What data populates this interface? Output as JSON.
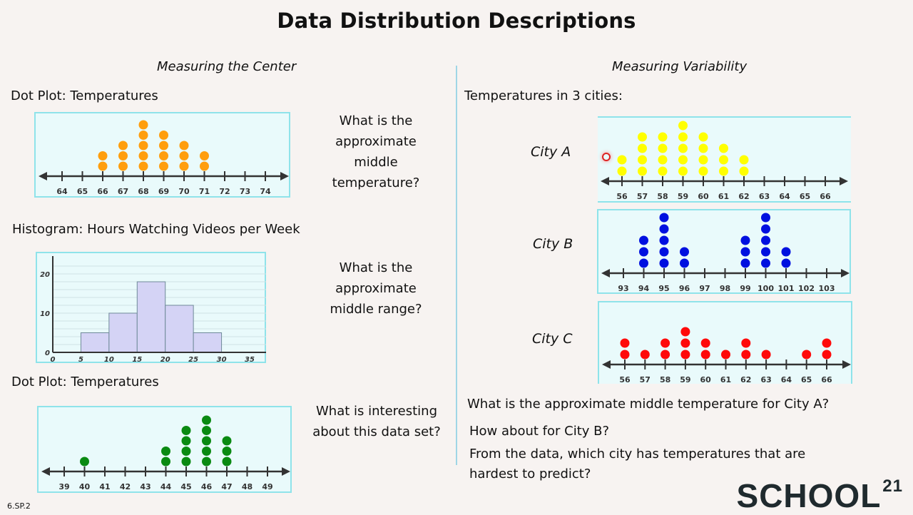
{
  "title": "Data Distribution Descriptions",
  "left": {
    "section": "Measuring the Center",
    "dot_plot_1_title": "Dot Plot:  Temperatures",
    "q1": [
      "What is the",
      "approximate",
      "middle",
      "temperature?"
    ],
    "histogram_title": "Histogram:  Hours Watching Videos per Week",
    "q2": [
      "What is the",
      "approximate",
      "middle range?"
    ],
    "dot_plot_2_title": "Dot Plot:  Temperatures",
    "q3": [
      "What is interesting",
      "about this data set?"
    ]
  },
  "right": {
    "section": "Measuring Variability",
    "subtitle": "Temperatures in 3 cities:",
    "city_a": "City A",
    "city_b": "City B",
    "city_c": "City C",
    "q1": "What is the approximate middle temperature for City A?",
    "q2": "How about for City B?",
    "q3": [
      "From the data, which city has temperatures that are",
      "hardest to predict?"
    ]
  },
  "footer": {
    "code": "6.SP.2",
    "logo": "SCHOOL",
    "logo_sup": "21"
  },
  "chart_data": [
    {
      "id": "dot1",
      "type": "scatter",
      "subtype": "dot-plot",
      "title": "Dot Plot: Temperatures",
      "color": "#ff9e0d",
      "ticks": [
        64,
        65,
        66,
        67,
        68,
        69,
        70,
        71,
        72,
        73,
        74
      ],
      "counts": {
        "66": 2,
        "67": 3,
        "68": 5,
        "69": 4,
        "70": 3,
        "71": 2
      }
    },
    {
      "id": "hist",
      "type": "bar",
      "subtype": "histogram",
      "title": "Hours Watching Videos per Week",
      "color": "#d4d3f5",
      "bins": [
        [
          5,
          10
        ],
        [
          10,
          15
        ],
        [
          15,
          20
        ],
        [
          20,
          25
        ],
        [
          25,
          30
        ]
      ],
      "values": [
        5,
        10,
        18,
        12,
        5
      ],
      "xticks": [
        0,
        5,
        10,
        15,
        20,
        25,
        30,
        35
      ],
      "yticks": [
        0,
        10,
        20
      ],
      "xlim": [
        0,
        35
      ],
      "ylim": [
        0,
        22
      ],
      "grid": true
    },
    {
      "id": "dot2",
      "type": "scatter",
      "subtype": "dot-plot",
      "title": "Dot Plot: Temperatures",
      "color": "#0a8a12",
      "ticks": [
        39,
        40,
        41,
        42,
        43,
        44,
        45,
        46,
        47,
        48,
        49
      ],
      "counts": {
        "40": 1,
        "44": 2,
        "45": 4,
        "46": 5,
        "47": 3
      }
    },
    {
      "id": "cityA",
      "type": "scatter",
      "subtype": "dot-plot",
      "title": "City A",
      "color": "#ffff00",
      "ticks": [
        56,
        57,
        58,
        59,
        60,
        61,
        62,
        63,
        64,
        65,
        66
      ],
      "counts": {
        "56": 2,
        "57": 4,
        "58": 4,
        "59": 5,
        "60": 4,
        "61": 3,
        "62": 2
      }
    },
    {
      "id": "cityB",
      "type": "scatter",
      "subtype": "dot-plot",
      "title": "City B",
      "color": "#0010e0",
      "ticks": [
        93,
        94,
        95,
        96,
        97,
        98,
        99,
        100,
        101,
        102,
        103
      ],
      "counts": {
        "94": 3,
        "95": 5,
        "96": 2,
        "99": 3,
        "100": 5,
        "101": 2
      }
    },
    {
      "id": "cityC",
      "type": "scatter",
      "subtype": "dot-plot",
      "title": "City C",
      "color": "#ff0a0a",
      "ticks": [
        56,
        57,
        58,
        59,
        60,
        61,
        62,
        63,
        64,
        65,
        66
      ],
      "counts": {
        "56": 2,
        "57": 1,
        "58": 2,
        "59": 3,
        "60": 2,
        "61": 1,
        "62": 2,
        "63": 1,
        "65": 1,
        "66": 2
      }
    }
  ]
}
